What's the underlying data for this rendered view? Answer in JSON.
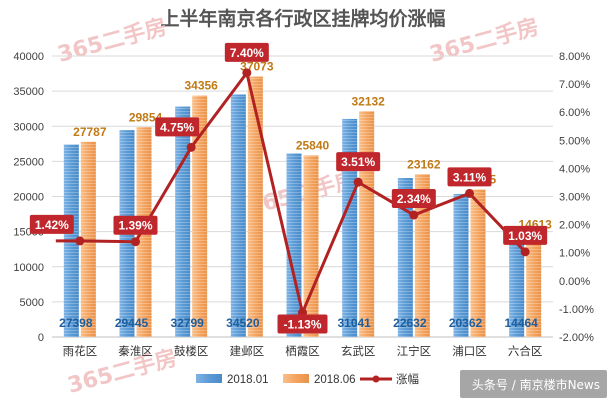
{
  "chart_data": {
    "type": "bar",
    "title": "上半年南京各行政区挂牌均价涨幅",
    "categories": [
      "雨花区",
      "秦淮区",
      "鼓楼区",
      "建邺区",
      "栖霞区",
      "玄武区",
      "江宁区",
      "浦口区",
      "六合区"
    ],
    "series": [
      {
        "name": "2018.01",
        "type": "bar",
        "axis": "left",
        "color": "#5b9bd5",
        "values": [
          27398,
          29445,
          32799,
          34520,
          26135,
          31041,
          22632,
          20362,
          14464
        ],
        "labels": [
          "27398",
          "29445",
          "32799",
          "34520",
          "26135",
          "31041",
          "22632",
          "20362",
          "14464"
        ]
      },
      {
        "name": "2018.06",
        "type": "bar",
        "axis": "left",
        "color": "#f4a460",
        "values": [
          27787,
          29854,
          34356,
          37073,
          25840,
          32132,
          23162,
          20995,
          14613
        ],
        "labels": [
          "27787",
          "29854",
          "34356",
          "37073",
          "25840",
          "32132",
          "23162",
          "20995",
          "14613"
        ]
      },
      {
        "name": "涨幅",
        "type": "line",
        "axis": "right",
        "color": "#b22222",
        "values": [
          1.42,
          1.39,
          4.75,
          7.4,
          -1.13,
          3.51,
          2.34,
          3.11,
          1.03
        ],
        "labels": [
          "1.42%",
          "1.39%",
          "4.75%",
          "7.40%",
          "-1.13%",
          "3.51%",
          "2.34%",
          "3.11%",
          "1.03%"
        ]
      }
    ],
    "y_left": {
      "range": [
        0,
        40000
      ],
      "ticks": [
        "0",
        "5000",
        "10000",
        "15000",
        "20000",
        "25000",
        "30000",
        "35000",
        "40000"
      ]
    },
    "y_right": {
      "range": [
        -2,
        8
      ],
      "ticks": [
        "-2.00%",
        "-1.00%",
        "0.00%",
        "1.00%",
        "2.00%",
        "3.00%",
        "4.00%",
        "5.00%",
        "6.00%",
        "7.00%",
        "8.00%"
      ]
    },
    "grid": true,
    "legend_position": "bottom"
  },
  "watermark": "365二手房",
  "source": "头条号 / 南京楼市News"
}
